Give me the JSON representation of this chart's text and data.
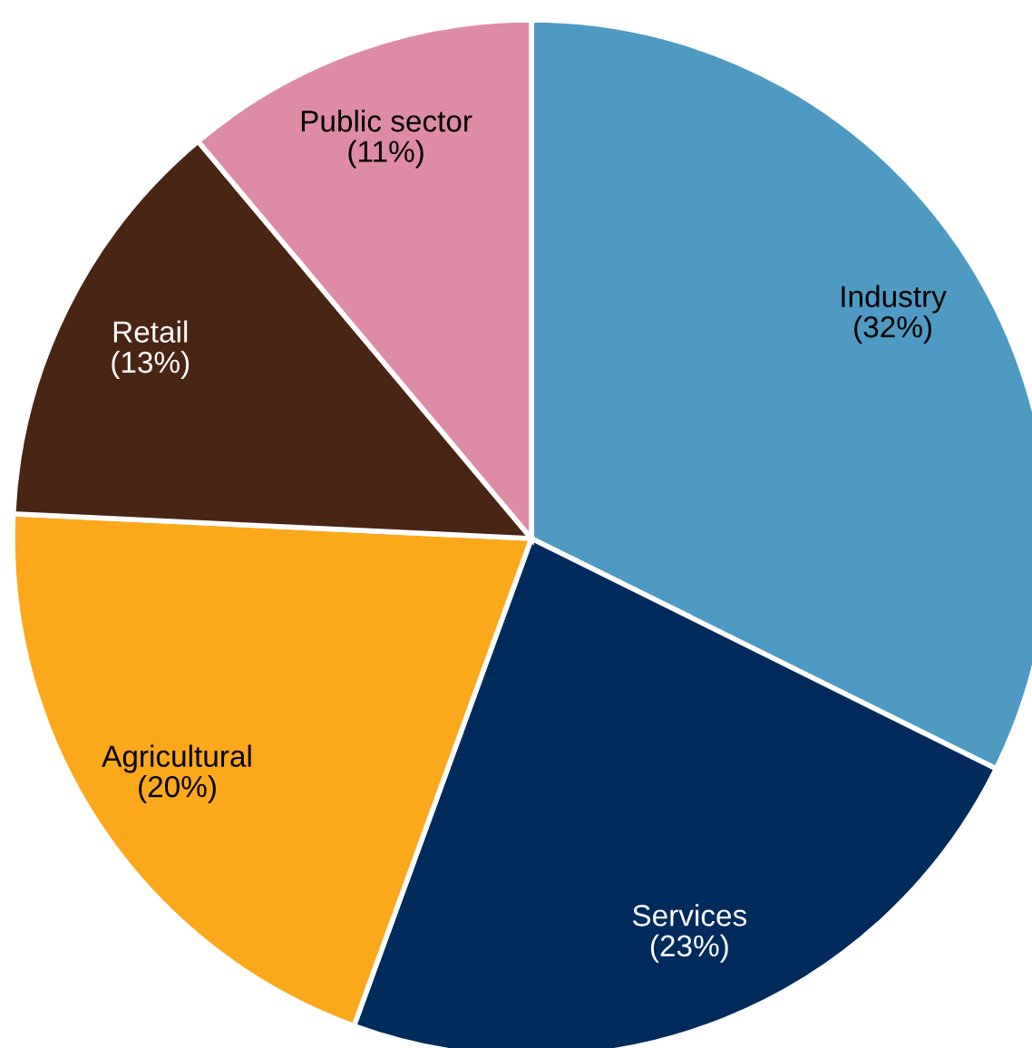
{
  "chart_data": {
    "type": "pie",
    "categories": [
      "Industry",
      "Services",
      "Agricultural",
      "Retail",
      "Public sector"
    ],
    "values": [
      32,
      23,
      20,
      13,
      11
    ],
    "value_labels": [
      "(32%)",
      "(23%)",
      "(20%)",
      "(13%)",
      "(11%)"
    ],
    "colors": [
      "#4f9ac3",
      "#002b5c",
      "#fca81b",
      "#4a2514",
      "#de8ba6"
    ],
    "legend": false
  }
}
